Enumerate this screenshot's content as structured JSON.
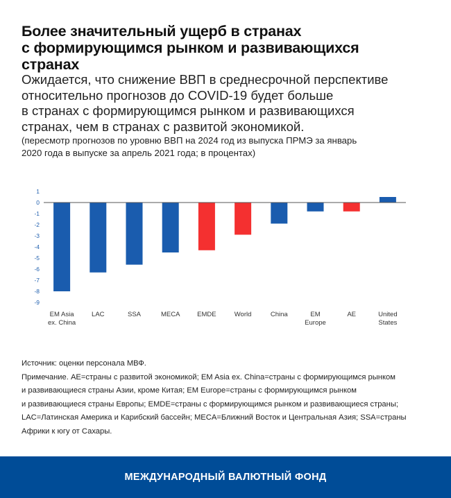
{
  "header": {
    "title": "Более значительный ущерб в странах\nс формирующимся рынком и развивающихся\nстранах",
    "subtitle": "Ожидается, что снижение ВВП в среднесрочной перспективе\nотносительно прогнозов до COVID-19  будет больше\nв странах с формирующимся рынком и развивающихся\nстранах, чем в странах с развитой экономикой.",
    "note": "(пересмотр прогнозов по уровню ВВП на 2024 год из выпуска ПРМЭ за январь\n2020 года в выпуске за апрель 2021 года; в процентах)"
  },
  "chart_data": {
    "type": "bar",
    "categories": [
      "EM Asia ex. China",
      "LAC",
      "SSA",
      "MECA",
      "EMDE",
      "World",
      "China",
      "EM Europe",
      "AE",
      "United States"
    ],
    "category_labels": [
      [
        "EM Asia",
        "ex. China"
      ],
      [
        "LAC"
      ],
      [
        "SSA"
      ],
      [
        "MECA"
      ],
      [
        "EMDE"
      ],
      [
        "World"
      ],
      [
        "China"
      ],
      [
        "EM",
        "Europe"
      ],
      [
        "AE"
      ],
      [
        "United",
        "States"
      ]
    ],
    "values": [
      -8.0,
      -6.3,
      -5.6,
      -4.5,
      -4.3,
      -2.9,
      -1.9,
      -0.8,
      -0.8,
      0.5
    ],
    "highlight": [
      false,
      false,
      false,
      false,
      true,
      true,
      false,
      false,
      true,
      false
    ],
    "ylim": [
      -9,
      1
    ],
    "yticks": [
      1,
      0,
      -1,
      -2,
      -3,
      -4,
      -5,
      -6,
      -7,
      -8,
      -9
    ],
    "ytick_labels": [
      "1",
      "0",
      "-1",
      "-2",
      "-3",
      "-4",
      "-5",
      "-6",
      "-7",
      "-8",
      "-9"
    ],
    "colors": {
      "primary": "#1a5cae",
      "highlight": "#f43030",
      "axis": "#555555"
    },
    "grid": false,
    "title": "",
    "xlabel": "",
    "ylabel": ""
  },
  "footnotes": {
    "source": "Источник: оценки персонала МВФ.",
    "note": "Примечание. AE=страны с развитой экономикой; EM Asia ex. China=страны с формирующимся рынком\nи развивающиеся страны Азии, кроме Китая; EM Europe=страны с формирующимся рынком\nи развивающиеся страны Европы; EMDE=страны с формирующимся рынком и развивающиеся страны;\nLAC=Латинская Америка и Карибский бассейн; MECA=Ближний Восток и Центральная Азия; SSA=страны\nАфрики к югу от Сахары."
  },
  "footer": {
    "text": "МЕЖДУНАРОДНЫЙ ВАЛЮТНЫЙ ФОНД",
    "color": "#004c97"
  }
}
